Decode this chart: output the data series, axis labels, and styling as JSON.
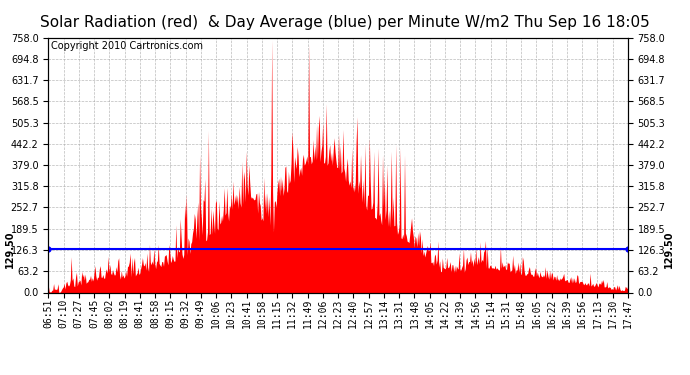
{
  "title": "Solar Radiation (red)  & Day Average (blue) per Minute W/m2 Thu Sep 16 18:05",
  "copyright": "Copyright 2010 Cartronics.com",
  "y_max": 758.0,
  "y_min": 0.0,
  "y_ticks": [
    0.0,
    63.2,
    126.3,
    189.5,
    252.7,
    315.8,
    379.0,
    442.2,
    505.3,
    568.5,
    631.7,
    694.8,
    758.0
  ],
  "day_average": 129.5,
  "bar_color": "#FF0000",
  "avg_line_color": "#0000FF",
  "background_color": "#FFFFFF",
  "grid_color": "#AAAAAA",
  "x_labels": [
    "06:51",
    "07:10",
    "07:27",
    "07:45",
    "08:02",
    "08:19",
    "08:41",
    "08:58",
    "09:15",
    "09:32",
    "09:49",
    "10:06",
    "10:23",
    "10:41",
    "10:58",
    "11:15",
    "11:32",
    "11:49",
    "12:06",
    "12:23",
    "12:40",
    "12:57",
    "13:14",
    "13:31",
    "13:48",
    "14:05",
    "14:22",
    "14:39",
    "14:56",
    "15:14",
    "15:31",
    "15:48",
    "16:05",
    "16:22",
    "16:39",
    "16:56",
    "17:13",
    "17:30",
    "17:47"
  ],
  "title_fontsize": 11,
  "copyright_fontsize": 7,
  "tick_fontsize": 7,
  "avg_label": "129.50"
}
